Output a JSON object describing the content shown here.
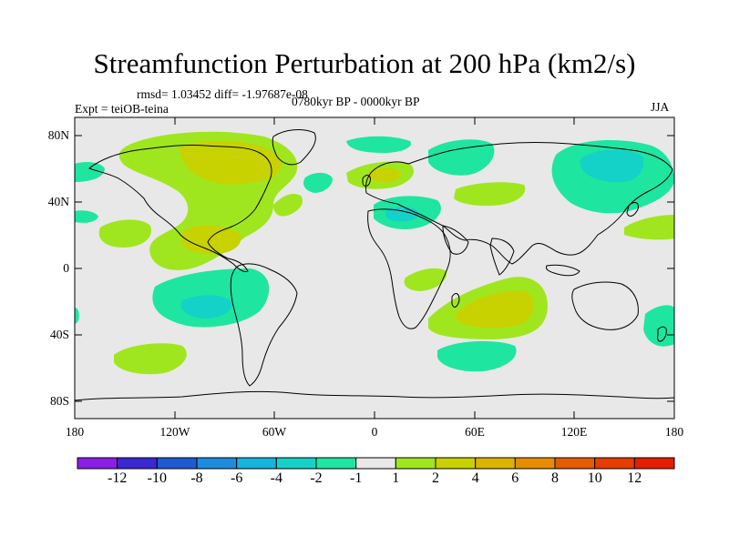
{
  "title": "Streamfunction Perturbation at 200 hPa (km2/s)",
  "stats": "rmsd= 1.03452 diff= -1.97687e-08",
  "experiment": "Expt = teiOB-teina",
  "period": "0780kyr BP - 0000kyr BP",
  "season": "JJA",
  "lat_labels": [
    "80N",
    "40N",
    "0",
    "40S",
    "80S"
  ],
  "lon_labels": [
    "180",
    "120W",
    "60W",
    "0",
    "60E",
    "120E",
    "180"
  ],
  "colorbar": {
    "labels": [
      "-12",
      "-10",
      "-8",
      "-6",
      "-4",
      "-2",
      "-1",
      "1",
      "2",
      "4",
      "6",
      "8",
      "10",
      "12"
    ],
    "colors": [
      "#8a1ee6",
      "#3c28d2",
      "#1e5ad2",
      "#1e8cdc",
      "#14b4dc",
      "#14d2c8",
      "#1ee6a0",
      "#e8e8e8",
      "#a0e61e",
      "#c8d200",
      "#dcb400",
      "#e68c00",
      "#e65a00",
      "#e63c00",
      "#e61e00"
    ]
  },
  "colors": {
    "ocean": "#e8e8e8",
    "pos1": "#a0e61e",
    "pos2": "#c8d200",
    "neg1": "#1ee6a0",
    "neg2": "#14d2c8",
    "neg3": "#14b4dc"
  }
}
